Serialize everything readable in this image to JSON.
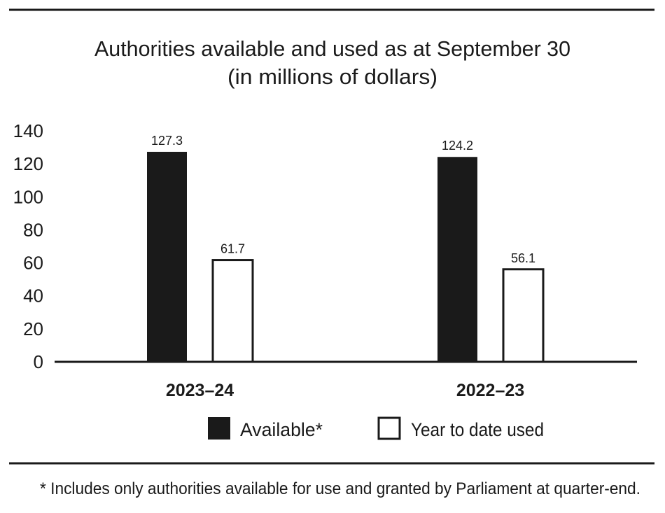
{
  "chart_data": {
    "type": "bar",
    "title": "Authorities available and used as at September 30",
    "subtitle": "(in millions of dollars)",
    "categories": [
      "2023–24",
      "2022–23"
    ],
    "series": [
      {
        "name": "Available*",
        "values": [
          127.3,
          124.2
        ],
        "color": "#1a1a1a"
      },
      {
        "name": "Year to date used",
        "values": [
          61.7,
          56.1
        ],
        "color": "#ffffff"
      }
    ],
    "data_labels": [
      [
        "127.3",
        "61.7"
      ],
      [
        "124.2",
        "56.1"
      ]
    ],
    "yticks": [
      "0",
      "20",
      "40",
      "60",
      "80",
      "100",
      "120",
      "140"
    ],
    "ylim": [
      0,
      140
    ],
    "xlabel": "",
    "ylabel": "",
    "grid": false,
    "legend": "bottom",
    "footnote": "* Includes only authorities available for use and granted by Parliament at quarter-end."
  }
}
